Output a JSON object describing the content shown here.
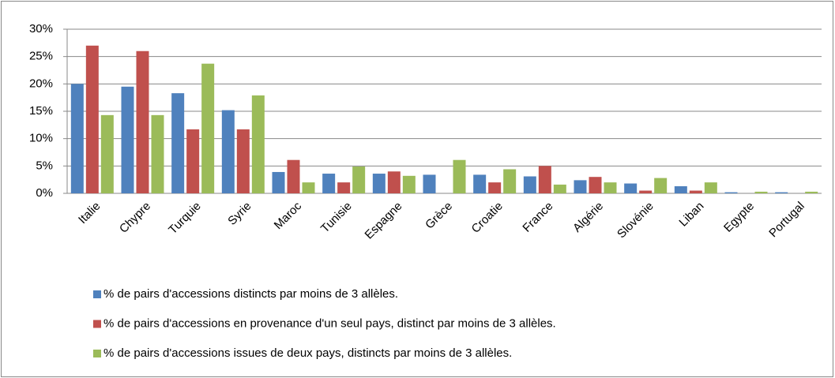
{
  "chart_data": {
    "type": "bar",
    "categories": [
      "Italie",
      "Chypre",
      "Turquie",
      "Syrie",
      "Maroc",
      "Tunisie",
      "Espagne",
      "Grèce",
      "Croatie",
      "France",
      "Algérie",
      "Slovénie",
      "Liban",
      "Egypte",
      "Portugal"
    ],
    "series": [
      {
        "name": "% de pairs d'accessions distincts par moins de 3 allèles.",
        "color": "#4f81bd",
        "values": [
          20,
          19.5,
          18.3,
          15.2,
          3.9,
          3.6,
          3.6,
          3.4,
          3.4,
          3.1,
          2.4,
          1.8,
          1.3,
          0.2,
          0.2
        ]
      },
      {
        "name": "% de pairs d'accessions en provenance d'un seul pays, distinct par moins de 3 allèles.",
        "color": "#c0504d",
        "values": [
          27,
          26,
          11.7,
          11.7,
          6.1,
          2.0,
          4.0,
          0,
          2.0,
          5.0,
          3.0,
          0.5,
          0.5,
          0,
          0
        ]
      },
      {
        "name": "% de pairs d'accessions issues de deux pays, distincts par moins de 3 allèles.",
        "color": "#9bbb59",
        "values": [
          14.3,
          14.3,
          23.7,
          17.9,
          2.0,
          4.9,
          3.2,
          6.1,
          4.4,
          1.6,
          2.0,
          2.8,
          2.0,
          0.3,
          0.3
        ]
      }
    ],
    "ylim": [
      0,
      30
    ],
    "yticks": [
      {
        "value": 0,
        "label": "0%"
      },
      {
        "value": 5,
        "label": "5%"
      },
      {
        "value": 10,
        "label": "10%"
      },
      {
        "value": 15,
        "label": "15%"
      },
      {
        "value": 20,
        "label": "20%"
      },
      {
        "value": 25,
        "label": "25%"
      },
      {
        "value": 30,
        "label": "30%"
      }
    ],
    "grid": true,
    "legend": "bottom"
  }
}
